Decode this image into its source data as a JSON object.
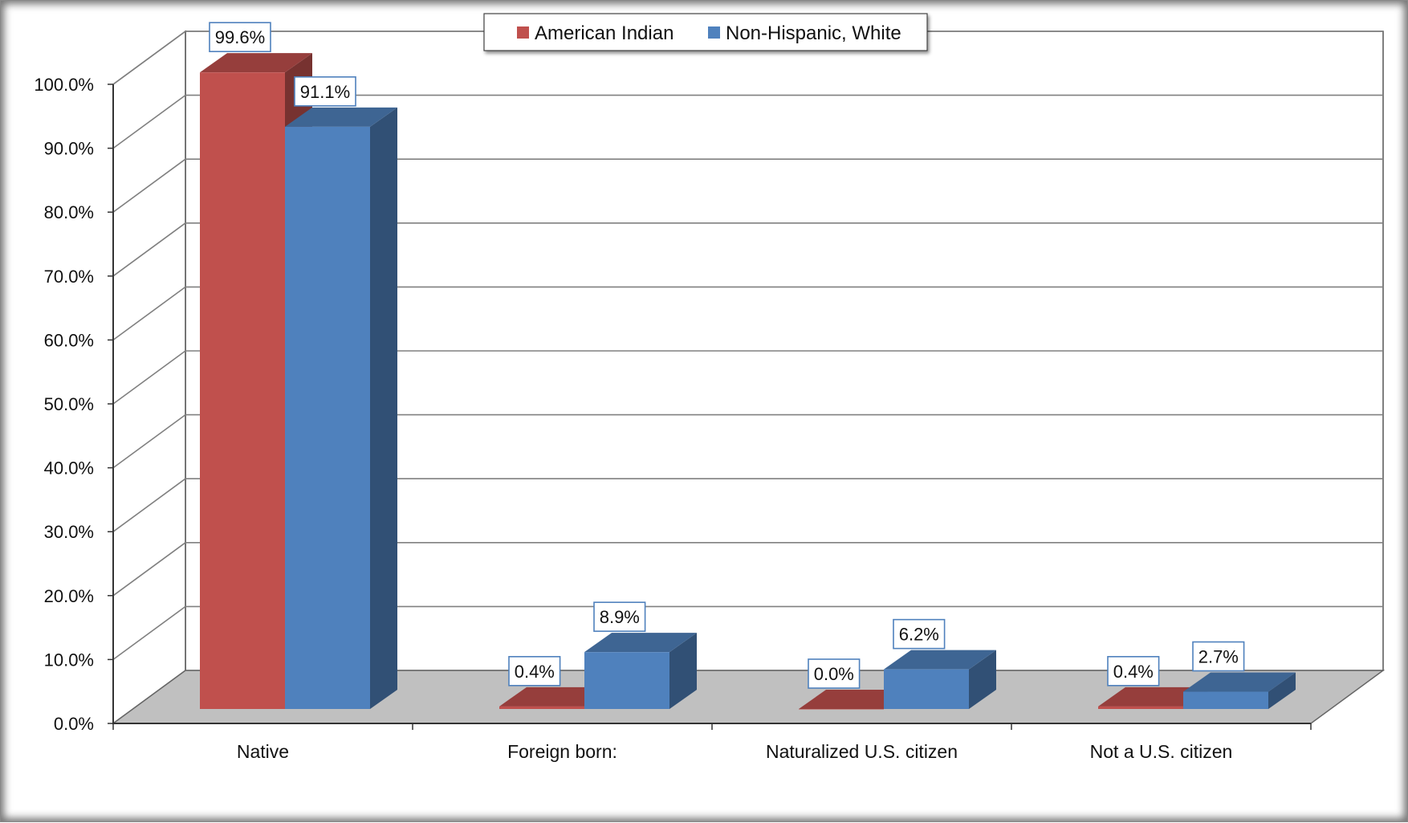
{
  "chart_data": {
    "type": "bar",
    "style": "3d-clustered-column",
    "categories": [
      "Native",
      "Foreign born:",
      "Naturalized U.S. citizen",
      "Not a U.S. citizen"
    ],
    "series": [
      {
        "name": "American Indian",
        "color": "#c0504d",
        "values": [
          99.6,
          0.4,
          0.0,
          0.4
        ],
        "labels": [
          "99.6%",
          "0.4%",
          "0.0%",
          "0.4%"
        ]
      },
      {
        "name": "Non-Hispanic, White",
        "color": "#4f81bd",
        "values": [
          91.1,
          8.9,
          6.2,
          2.7
        ],
        "labels": [
          "91.1%",
          "8.9%",
          "6.2%",
          "2.7%"
        ]
      }
    ],
    "y_ticks": [
      "0.0%",
      "10.0%",
      "20.0%",
      "30.0%",
      "40.0%",
      "50.0%",
      "60.0%",
      "70.0%",
      "80.0%",
      "90.0%",
      "100.0%"
    ],
    "ylim": [
      0,
      100
    ],
    "title": "",
    "xlabel": "",
    "ylabel": "",
    "grid": true,
    "legend": "top-center"
  }
}
